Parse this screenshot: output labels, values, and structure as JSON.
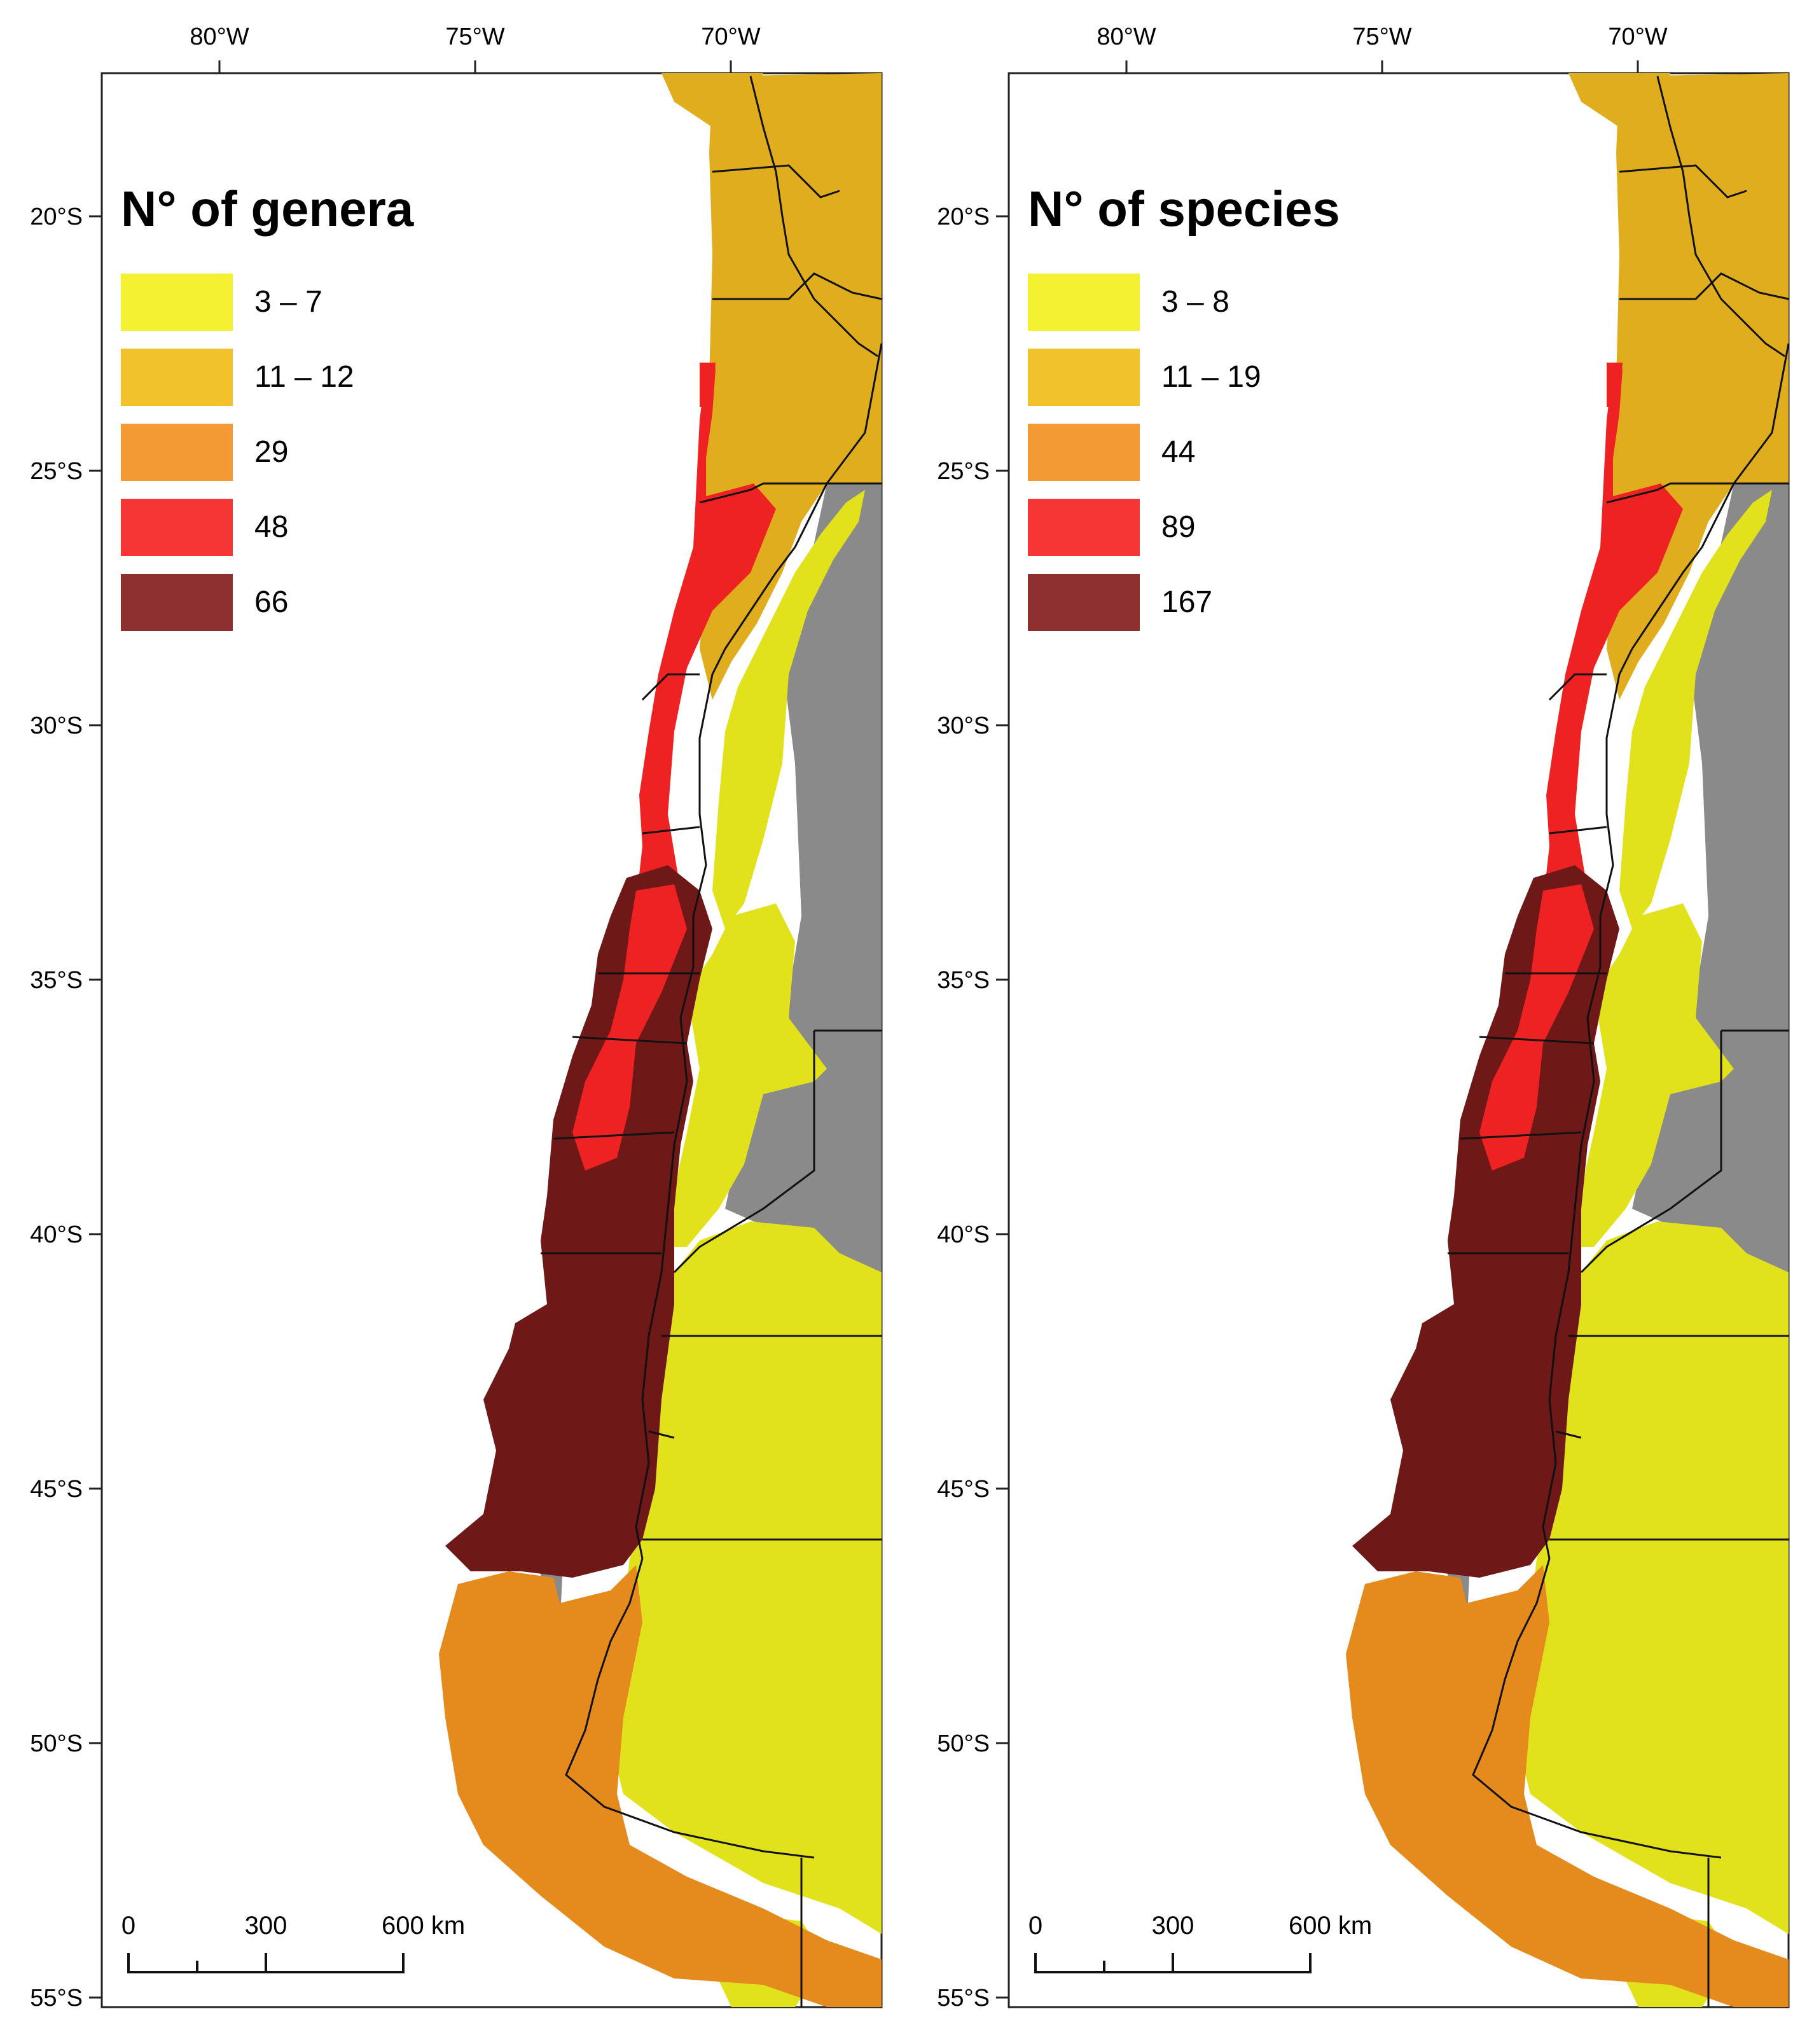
{
  "axes": {
    "lon_labels": [
      "80°W",
      "75°W",
      "70°W"
    ],
    "lat_labels": [
      "20°S",
      "25°S",
      "30°S",
      "35°S",
      "40°S",
      "45°S",
      "50°S",
      "55°S"
    ]
  },
  "scale_bar": {
    "labels": [
      "0",
      "300",
      "600 km"
    ]
  },
  "maps": [
    {
      "legend_title": "N° of genera",
      "legend": [
        {
          "label": "3 – 7",
          "color": "#f4f032"
        },
        {
          "label": "11 – 12",
          "color": "#f2c22d"
        },
        {
          "label": "29",
          "color": "#f39a34"
        },
        {
          "label": "48",
          "color": "#f63535"
        },
        {
          "label": "66",
          "color": "#8e3030"
        }
      ]
    },
    {
      "legend_title": "N° of species",
      "legend": [
        {
          "label": "3 – 8",
          "color": "#f4f032"
        },
        {
          "label": "11 – 19",
          "color": "#f2c22d"
        },
        {
          "label": "44",
          "color": "#f39a34"
        },
        {
          "label": "89",
          "color": "#f63535"
        },
        {
          "label": "167",
          "color": "#8e3030"
        }
      ]
    }
  ],
  "map_colors": {
    "north": "#dfad1e",
    "red": "#ee2222",
    "darkred": "#6f1818",
    "yellow": "#e2e21c",
    "orange": "#e58a1c",
    "relief": "#8a8a8a",
    "border": "#111111"
  }
}
